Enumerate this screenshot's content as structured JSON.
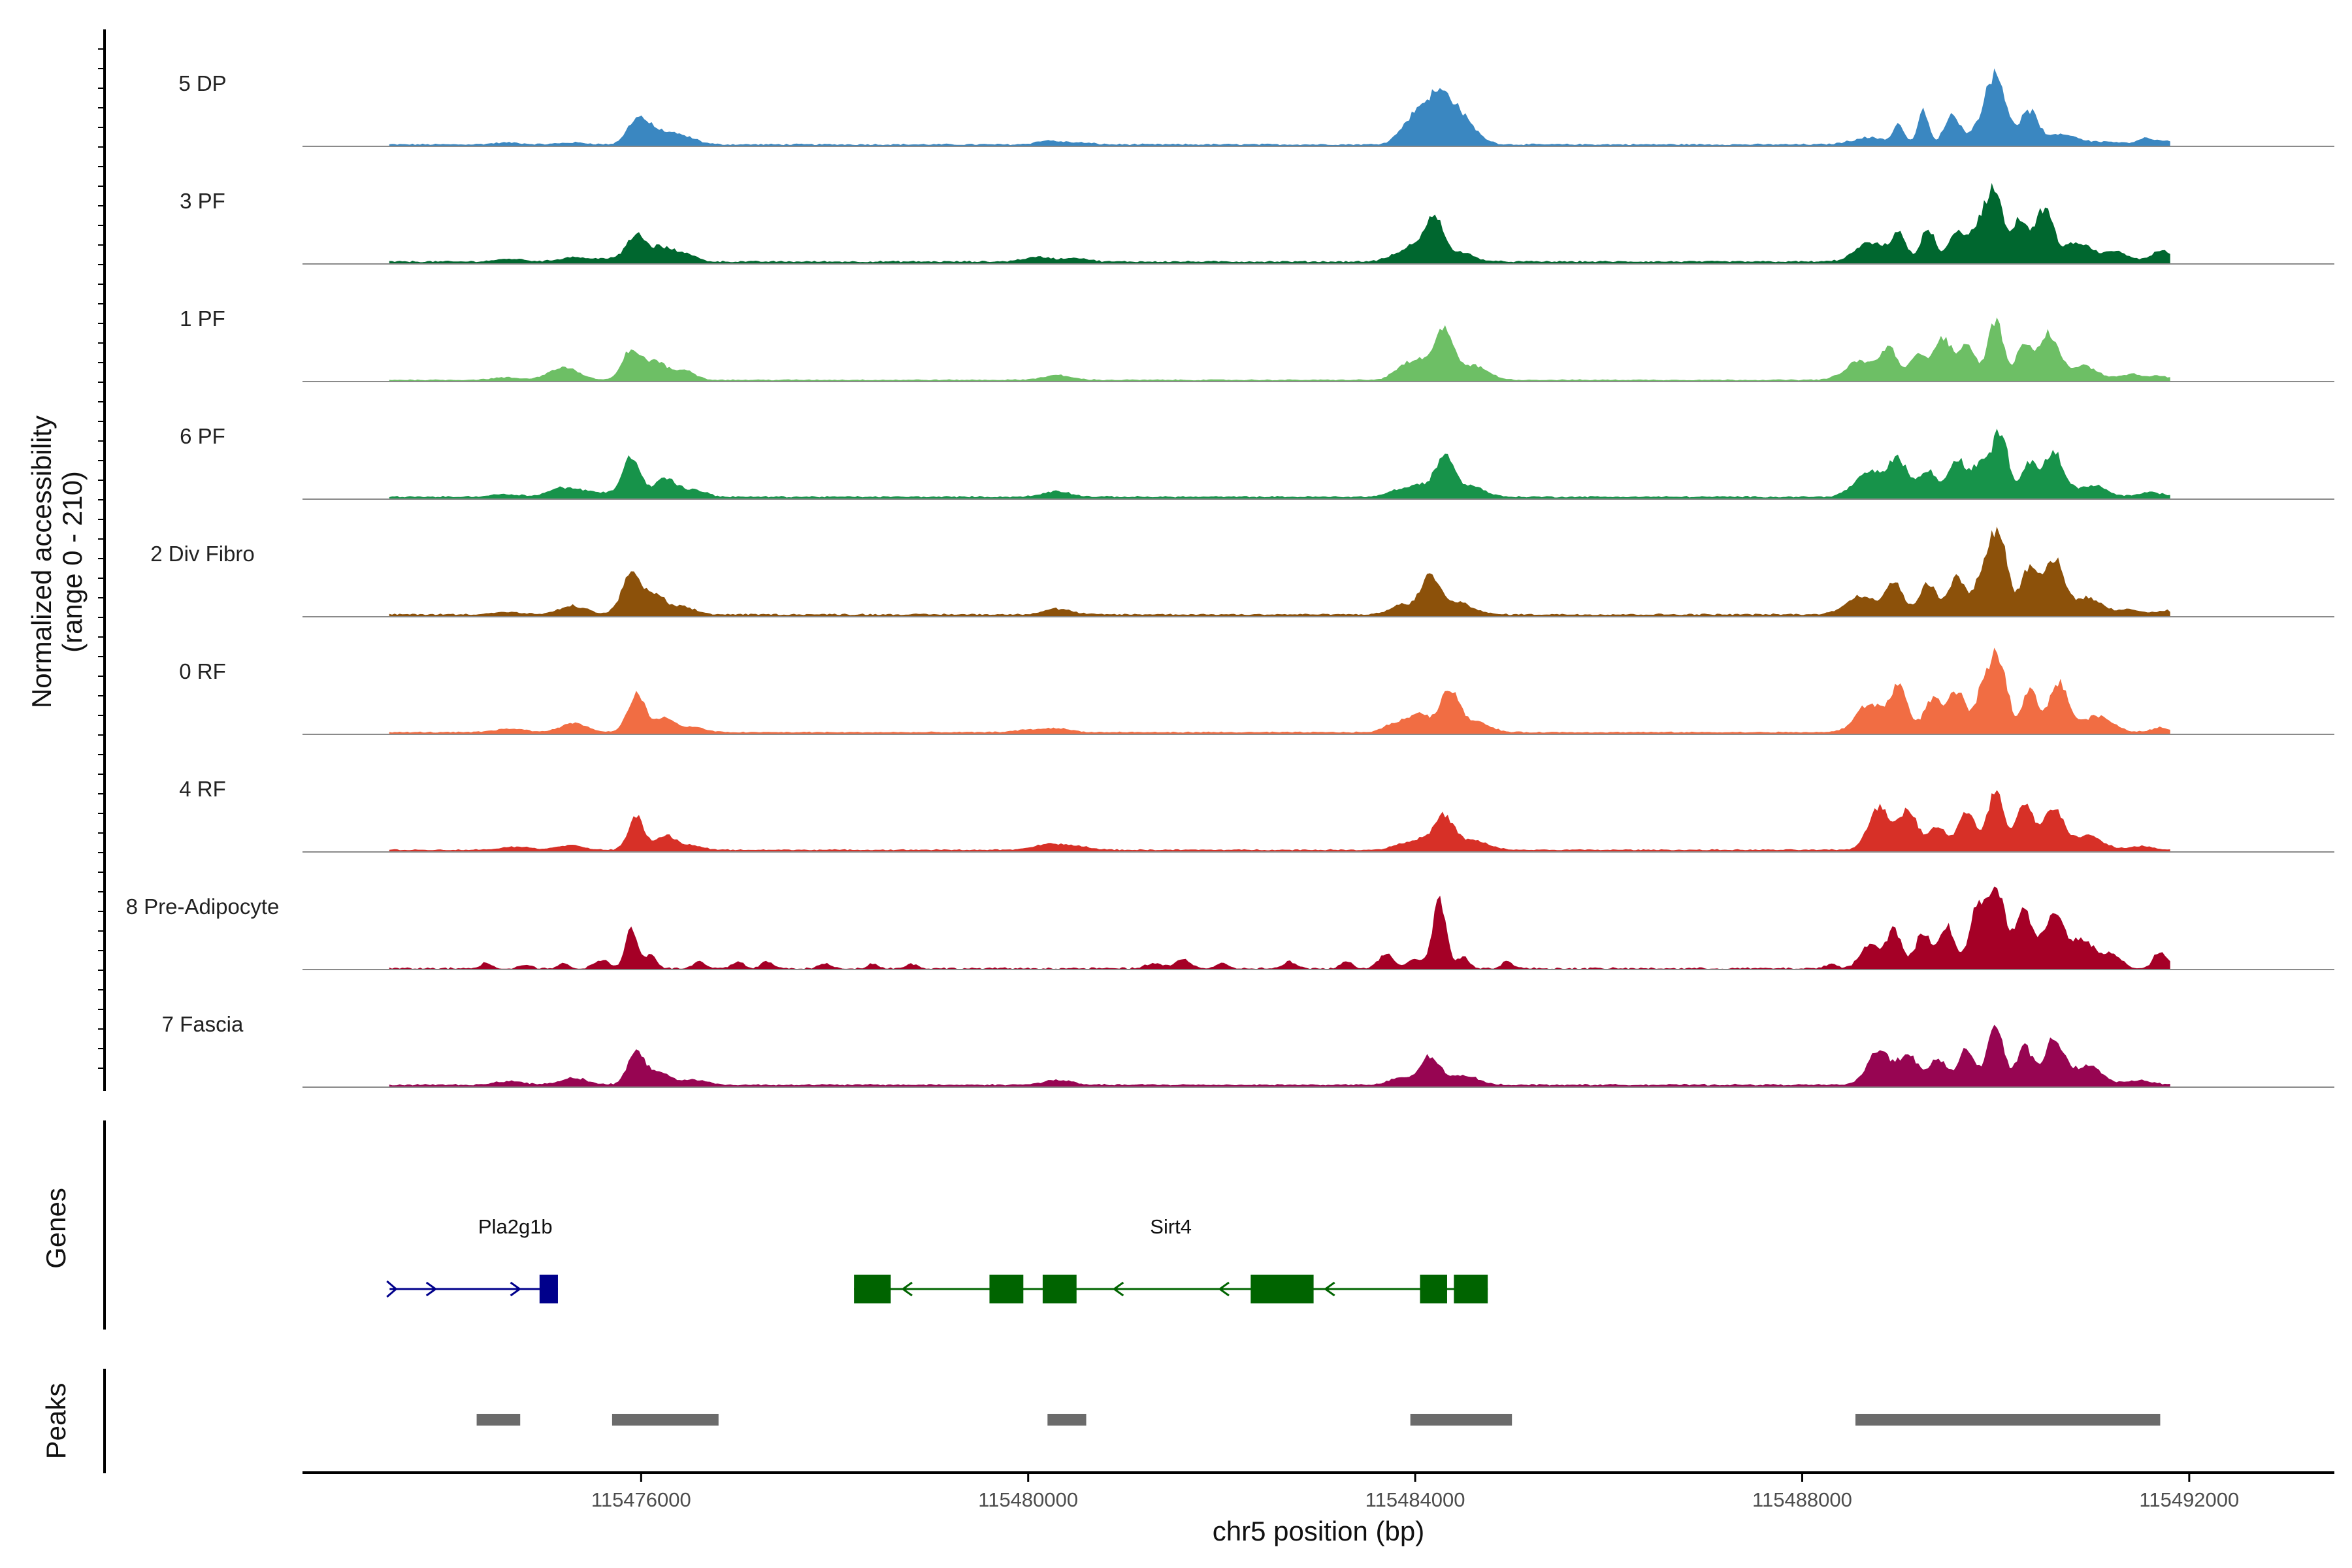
{
  "chart_data": {
    "type": "area",
    "chromosome": "chr5",
    "xlabel": "chr5 position (bp)",
    "ylabel": "Normalized accessibility",
    "ylabel_range": "(range 0 - 210)",
    "xlim": [
      115472500,
      115493500
    ],
    "region": [
      115473400,
      115491800
    ],
    "ylim": [
      0,
      210
    ],
    "x_ticks": [
      115476000,
      115480000,
      115484000,
      115488000,
      115492000
    ],
    "x_tick_labels": [
      "115476000",
      "115480000",
      "115484000",
      "115488000",
      "115492000"
    ],
    "genes_panel_label": "Genes",
    "peaks_panel_label": "Peaks",
    "tracks": [
      {
        "name": "5 DP",
        "color": "#3A87C1",
        "baseline": 2,
        "noise": 3,
        "peaks": [
          [
            115474620,
            4,
            150
          ],
          [
            115475300,
            4,
            150
          ],
          [
            115475950,
            48,
            95
          ],
          [
            115476100,
            22,
            120
          ],
          [
            115476300,
            18,
            150
          ],
          [
            115476500,
            8,
            120
          ],
          [
            115480200,
            8,
            120
          ],
          [
            115480500,
            4,
            150
          ],
          [
            115483850,
            10,
            100
          ],
          [
            115484000,
            45,
            120
          ],
          [
            115484250,
            100,
            150
          ],
          [
            115484500,
            40,
            150
          ],
          [
            115488700,
            15,
            180
          ],
          [
            115489000,
            40,
            55
          ],
          [
            115489250,
            70,
            55
          ],
          [
            115489550,
            60,
            80
          ],
          [
            115489850,
            22,
            150
          ],
          [
            115490000,
            135,
            110
          ],
          [
            115490350,
            70,
            90
          ],
          [
            115490700,
            22,
            150
          ],
          [
            115491150,
            6,
            160
          ],
          [
            115491550,
            12,
            80
          ],
          [
            115491750,
            7,
            100
          ]
        ]
      },
      {
        "name": "3 PF",
        "color": "#00672F",
        "baseline": 3,
        "noise": 3,
        "peaks": [
          [
            115474650,
            6,
            150
          ],
          [
            115475300,
            10,
            140
          ],
          [
            115475700,
            8,
            140
          ],
          [
            115475950,
            55,
            90
          ],
          [
            115476200,
            30,
            110
          ],
          [
            115476450,
            18,
            110
          ],
          [
            115480100,
            10,
            150
          ],
          [
            115480500,
            8,
            120
          ],
          [
            115483800,
            10,
            120
          ],
          [
            115484000,
            30,
            120
          ],
          [
            115484200,
            85,
            90
          ],
          [
            115484450,
            20,
            150
          ],
          [
            115488700,
            40,
            150
          ],
          [
            115489000,
            55,
            80
          ],
          [
            115489300,
            70,
            70
          ],
          [
            115489600,
            60,
            90
          ],
          [
            115489850,
            80,
            100
          ],
          [
            115490000,
            130,
            80
          ],
          [
            115490250,
            90,
            80
          ],
          [
            115490500,
            110,
            90
          ],
          [
            115490850,
            40,
            150
          ],
          [
            115491250,
            20,
            120
          ],
          [
            115491650,
            12,
            90
          ],
          [
            115491750,
            15,
            80
          ]
        ]
      },
      {
        "name": "1 PF",
        "color": "#6DBF65",
        "baseline": 2,
        "noise": 2,
        "peaks": [
          [
            115474600,
            5,
            150
          ],
          [
            115475200,
            28,
            150
          ],
          [
            115475900,
            65,
            90
          ],
          [
            115476150,
            40,
            110
          ],
          [
            115476450,
            20,
            110
          ],
          [
            115480300,
            10,
            150
          ],
          [
            115483850,
            20,
            100
          ],
          [
            115484050,
            40,
            120
          ],
          [
            115484300,
            105,
            90
          ],
          [
            115484600,
            30,
            150
          ],
          [
            115488600,
            40,
            150
          ],
          [
            115488900,
            65,
            90
          ],
          [
            115489200,
            55,
            80
          ],
          [
            115489450,
            90,
            90
          ],
          [
            115489700,
            70,
            90
          ],
          [
            115490000,
            125,
            80
          ],
          [
            115490300,
            80,
            80
          ],
          [
            115490550,
            95,
            100
          ],
          [
            115490900,
            30,
            150
          ],
          [
            115491400,
            12,
            120
          ],
          [
            115491700,
            8,
            100
          ]
        ]
      },
      {
        "name": "6 PF",
        "color": "#17934A",
        "baseline": 3,
        "noise": 3,
        "peaks": [
          [
            115474600,
            6,
            150
          ],
          [
            115475200,
            20,
            150
          ],
          [
            115475550,
            10,
            150
          ],
          [
            115475900,
            85,
            90
          ],
          [
            115476250,
            40,
            110
          ],
          [
            115476550,
            15,
            120
          ],
          [
            115480300,
            12,
            140
          ],
          [
            115483800,
            12,
            110
          ],
          [
            115484050,
            25,
            120
          ],
          [
            115484300,
            80,
            90
          ],
          [
            115484550,
            25,
            150
          ],
          [
            115488700,
            55,
            150
          ],
          [
            115489000,
            75,
            100
          ],
          [
            115489300,
            55,
            90
          ],
          [
            115489600,
            80,
            90
          ],
          [
            115489850,
            70,
            90
          ],
          [
            115490050,
            135,
            80
          ],
          [
            115490350,
            70,
            80
          ],
          [
            115490600,
            95,
            100
          ],
          [
            115491000,
            25,
            150
          ],
          [
            115491600,
            10,
            120
          ]
        ]
      },
      {
        "name": "2 Div Fibro",
        "color": "#8C510A",
        "baseline": 3,
        "noise": 3,
        "peaks": [
          [
            115474600,
            5,
            150
          ],
          [
            115475300,
            18,
            140
          ],
          [
            115475900,
            85,
            100
          ],
          [
            115476150,
            40,
            110
          ],
          [
            115476450,
            15,
            120
          ],
          [
            115480300,
            12,
            140
          ],
          [
            115483850,
            20,
            110
          ],
          [
            115484150,
            80,
            100
          ],
          [
            115484450,
            25,
            150
          ],
          [
            115488600,
            40,
            150
          ],
          [
            115488950,
            70,
            90
          ],
          [
            115489300,
            65,
            90
          ],
          [
            115489600,
            80,
            90
          ],
          [
            115489900,
            110,
            90
          ],
          [
            115490050,
            145,
            80
          ],
          [
            115490350,
            100,
            90
          ],
          [
            115490600,
            115,
            100
          ],
          [
            115490950,
            35,
            150
          ],
          [
            115491400,
            10,
            120
          ],
          [
            115491750,
            8,
            100
          ]
        ]
      },
      {
        "name": "0 RF",
        "color": "#F16D43",
        "baseline": 3,
        "noise": 2,
        "peaks": [
          [
            115474650,
            8,
            150
          ],
          [
            115475300,
            20,
            140
          ],
          [
            115475950,
            80,
            90
          ],
          [
            115476250,
            30,
            110
          ],
          [
            115476550,
            10,
            120
          ],
          [
            115480000,
            5,
            150
          ],
          [
            115480300,
            8,
            140
          ],
          [
            115483800,
            20,
            110
          ],
          [
            115484050,
            40,
            110
          ],
          [
            115484350,
            90,
            90
          ],
          [
            115484600,
            25,
            150
          ],
          [
            115488700,
            60,
            140
          ],
          [
            115489000,
            95,
            90
          ],
          [
            115489350,
            70,
            90
          ],
          [
            115489600,
            85,
            90
          ],
          [
            115489900,
            110,
            90
          ],
          [
            115490050,
            130,
            80
          ],
          [
            115490350,
            90,
            80
          ],
          [
            115490650,
            105,
            100
          ],
          [
            115491050,
            35,
            150
          ],
          [
            115491700,
            10,
            100
          ]
        ]
      },
      {
        "name": "4 RF",
        "color": "#D73027",
        "baseline": 3,
        "noise": 2,
        "peaks": [
          [
            115474700,
            7,
            150
          ],
          [
            115475250,
            10,
            140
          ],
          [
            115475950,
            70,
            80
          ],
          [
            115476250,
            30,
            100
          ],
          [
            115476500,
            10,
            120
          ],
          [
            115480200,
            12,
            140
          ],
          [
            115480500,
            8,
            140
          ],
          [
            115483850,
            10,
            110
          ],
          [
            115484050,
            20,
            110
          ],
          [
            115484300,
            70,
            100
          ],
          [
            115484600,
            20,
            150
          ],
          [
            115488800,
            95,
            110
          ],
          [
            115489100,
            85,
            90
          ],
          [
            115489400,
            50,
            90
          ],
          [
            115489700,
            80,
            90
          ],
          [
            115490000,
            125,
            80
          ],
          [
            115490300,
            95,
            90
          ],
          [
            115490600,
            90,
            100
          ],
          [
            115490950,
            30,
            150
          ],
          [
            115491500,
            8,
            120
          ]
        ]
      },
      {
        "name": "8 Pre-Adipocyte",
        "color": "#A50026",
        "baseline": 0,
        "noise": 4,
        "peaks": [
          [
            115474400,
            12,
            60
          ],
          [
            115474800,
            8,
            60
          ],
          [
            115475200,
            10,
            60
          ],
          [
            115475600,
            18,
            80
          ],
          [
            115475900,
            90,
            60
          ],
          [
            115476100,
            30,
            60
          ],
          [
            115476600,
            15,
            60
          ],
          [
            115477000,
            15,
            60
          ],
          [
            115477300,
            15,
            60
          ],
          [
            115477900,
            10,
            60
          ],
          [
            115478400,
            10,
            60
          ],
          [
            115478800,
            10,
            60
          ],
          [
            115481300,
            12,
            80
          ],
          [
            115481600,
            20,
            80
          ],
          [
            115482000,
            10,
            60
          ],
          [
            115482700,
            15,
            60
          ],
          [
            115483300,
            15,
            60
          ],
          [
            115483700,
            30,
            80
          ],
          [
            115484000,
            20,
            80
          ],
          [
            115484250,
            145,
            70
          ],
          [
            115484500,
            25,
            60
          ],
          [
            115484950,
            15,
            60
          ],
          [
            115488300,
            10,
            60
          ],
          [
            115488700,
            50,
            100
          ],
          [
            115488950,
            80,
            80
          ],
          [
            115489250,
            75,
            80
          ],
          [
            115489500,
            90,
            80
          ],
          [
            115489800,
            110,
            80
          ],
          [
            115490000,
            170,
            100
          ],
          [
            115490300,
            120,
            90
          ],
          [
            115490600,
            120,
            100
          ],
          [
            115490900,
            60,
            120
          ],
          [
            115491200,
            30,
            100
          ],
          [
            115491700,
            35,
            70
          ]
        ]
      },
      {
        "name": "7 Fascia",
        "color": "#970552",
        "baseline": 3,
        "noise": 3,
        "peaks": [
          [
            115474650,
            8,
            150
          ],
          [
            115475300,
            15,
            140
          ],
          [
            115475950,
            70,
            90
          ],
          [
            115476200,
            25,
            110
          ],
          [
            115476550,
            12,
            120
          ],
          [
            115480300,
            10,
            150
          ],
          [
            115483850,
            15,
            110
          ],
          [
            115484150,
            60,
            100
          ],
          [
            115484500,
            20,
            150
          ],
          [
            115488800,
            75,
            120
          ],
          [
            115489100,
            65,
            90
          ],
          [
            115489400,
            55,
            90
          ],
          [
            115489700,
            75,
            90
          ],
          [
            115490000,
            130,
            80
          ],
          [
            115490300,
            80,
            80
          ],
          [
            115490600,
            95,
            100
          ],
          [
            115490950,
            40,
            150
          ],
          [
            115491500,
            10,
            120
          ]
        ]
      }
    ],
    "genes": [
      {
        "name": "Pla2g1b",
        "strand": "+",
        "color": "#00008B",
        "start": 115473400,
        "end": 115475140,
        "exons": [
          [
            115474950,
            115475140
          ]
        ]
      },
      {
        "name": "Sirt4",
        "strand": "-",
        "color": "#006400",
        "start": 115478200,
        "end": 115484750,
        "exons": [
          [
            115478200,
            115478580
          ],
          [
            115479600,
            115479950
          ],
          [
            115480150,
            115480500
          ],
          [
            115482300,
            115482950
          ],
          [
            115484050,
            115484330
          ],
          [
            115484400,
            115484750
          ]
        ]
      }
    ],
    "peaks": [
      [
        115474300,
        115474750
      ],
      [
        115475700,
        115476800
      ],
      [
        115480200,
        115480600
      ],
      [
        115483950,
        115485000
      ],
      [
        115488550,
        115491700
      ]
    ]
  }
}
